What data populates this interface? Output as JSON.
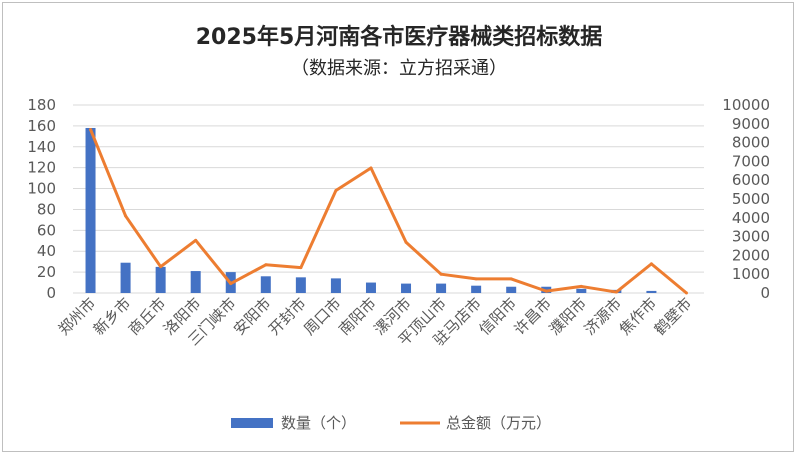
{
  "chart_data": {
    "type": "bar",
    "title": "2025年5月河南各市医疗器械类招标数据",
    "subtitle": "（数据来源：立方招采通）",
    "categories": [
      "郑州市",
      "新乡市",
      "商丘市",
      "洛阳市",
      "三门峡市",
      "安阳市",
      "开封市",
      "周口市",
      "南阳市",
      "漯河市",
      "平顶山市",
      "驻马店市",
      "信阳市",
      "许昌市",
      "濮阳市",
      "济源市",
      "焦作市",
      "鹤壁市"
    ],
    "series": [
      {
        "name": "数量（个）",
        "kind": "bar",
        "axis": "left",
        "color": "#4472C4",
        "values": [
          158,
          29,
          25,
          21,
          20,
          16,
          15,
          14,
          10,
          9,
          9,
          7,
          6,
          6,
          4,
          3,
          2,
          0
        ]
      },
      {
        "name": "总金额（万元）",
        "kind": "line",
        "axis": "right",
        "color": "#ED7D31",
        "values": [
          8700,
          4100,
          1400,
          2800,
          500,
          1500,
          1350,
          5450,
          6650,
          2700,
          1000,
          750,
          750,
          100,
          350,
          50,
          1550,
          0
        ]
      }
    ],
    "y_left": {
      "min": 0,
      "max": 180,
      "ticks": [
        0,
        20,
        40,
        60,
        80,
        100,
        120,
        140,
        160,
        180
      ]
    },
    "y_right": {
      "min": 0,
      "max": 10000,
      "ticks": [
        0,
        1000,
        2000,
        3000,
        4000,
        5000,
        6000,
        7000,
        8000,
        9000,
        10000
      ]
    },
    "grid": true,
    "legend": "bottom"
  }
}
